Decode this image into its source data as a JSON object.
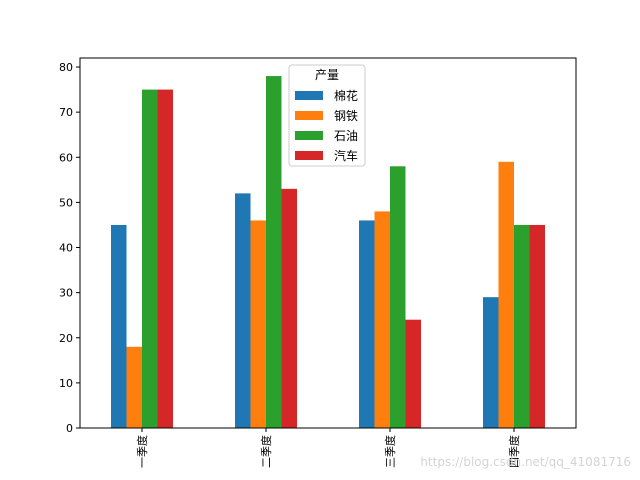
{
  "chart_data": {
    "type": "bar",
    "categories": [
      "一季度",
      "二季度",
      "三季度",
      "四季度"
    ],
    "series": [
      {
        "name": "棉花",
        "values": [
          45,
          52,
          46,
          29
        ],
        "color": "#1f77b4"
      },
      {
        "name": "钢铁",
        "values": [
          18,
          46,
          48,
          59
        ],
        "color": "#ff7f0e"
      },
      {
        "name": "石油",
        "values": [
          75,
          78,
          58,
          45
        ],
        "color": "#2ca02c"
      },
      {
        "name": "汽车",
        "values": [
          75,
          53,
          24,
          45
        ],
        "color": "#d62728"
      }
    ],
    "legend_title": "产量",
    "legend_position": "top-center",
    "ylim": [
      0,
      82
    ],
    "yticks": [
      0,
      10,
      20,
      30,
      40,
      50,
      60,
      70,
      80
    ],
    "xtick_rotation": "vertical",
    "grid": false
  },
  "watermark": "https://blog.csdn.net/qq_41081716"
}
